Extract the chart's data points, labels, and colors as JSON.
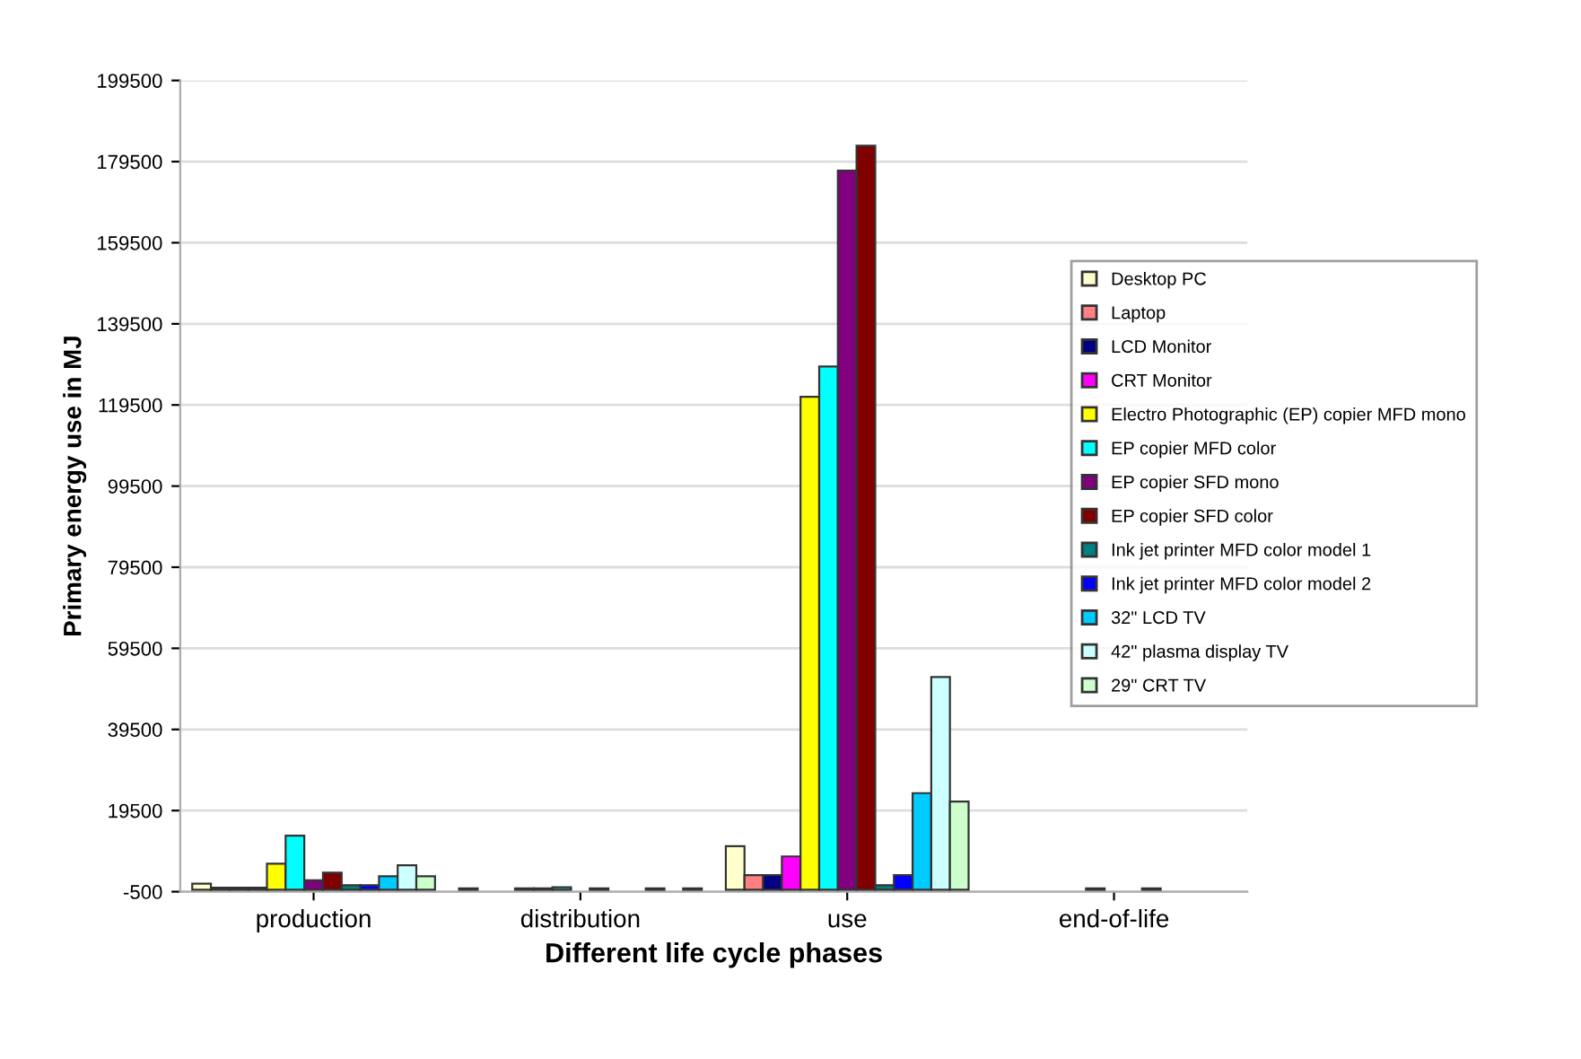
{
  "chart_data": {
    "type": "bar",
    "xlabel": "Different life cycle phases",
    "ylabel": "Primary energy use in MJ",
    "categories": [
      "production",
      "distribution",
      "use",
      "end-of-life"
    ],
    "series": [
      {
        "name": "Desktop PC",
        "color": "#ffffcc",
        "values": [
          1500,
          300,
          10700,
          null
        ]
      },
      {
        "name": "Laptop",
        "color": "#ff8080",
        "values": [
          500,
          null,
          3600,
          null
        ]
      },
      {
        "name": "LCD Monitor",
        "color": "#000080",
        "values": [
          500,
          null,
          3600,
          null
        ]
      },
      {
        "name": "CRT Monitor",
        "color": "#ff00ff",
        "values": [
          500,
          300,
          8200,
          null
        ]
      },
      {
        "name": "Electro Photographic (EP) copier MFD mono",
        "color": "#ffff00",
        "values": [
          6400,
          300,
          121500,
          null
        ]
      },
      {
        "name": "EP copier MFD color",
        "color": "#00ffff",
        "values": [
          13300,
          600,
          129000,
          300
        ]
      },
      {
        "name": "EP copier SFD mono",
        "color": "#800080",
        "values": [
          2300,
          null,
          177300,
          null
        ]
      },
      {
        "name": "EP copier SFD color",
        "color": "#800000",
        "values": [
          4200,
          300,
          183400,
          null
        ]
      },
      {
        "name": "Ink jet printer MFD color model 1",
        "color": "#008080",
        "values": [
          1100,
          null,
          1100,
          300
        ]
      },
      {
        "name": "Ink jet printer MFD color model 2",
        "color": "#0000ff",
        "values": [
          1100,
          null,
          3600,
          null
        ]
      },
      {
        "name": "32\" LCD TV",
        "color": "#00ccff",
        "values": [
          3300,
          300,
          23800,
          null
        ]
      },
      {
        "name": "42\" plasma display TV",
        "color": "#ccffff",
        "values": [
          6000,
          null,
          52400,
          null
        ]
      },
      {
        "name": "29\" CRT TV",
        "color": "#ccffcc",
        "values": [
          3300,
          300,
          21700,
          null
        ]
      }
    ],
    "ylim": [
      -500,
      199500
    ],
    "yticks": [
      -500,
      19500,
      39500,
      59500,
      79500,
      99500,
      119500,
      139500,
      159500,
      179500,
      199500
    ],
    "grid": "y",
    "legend": "right"
  }
}
